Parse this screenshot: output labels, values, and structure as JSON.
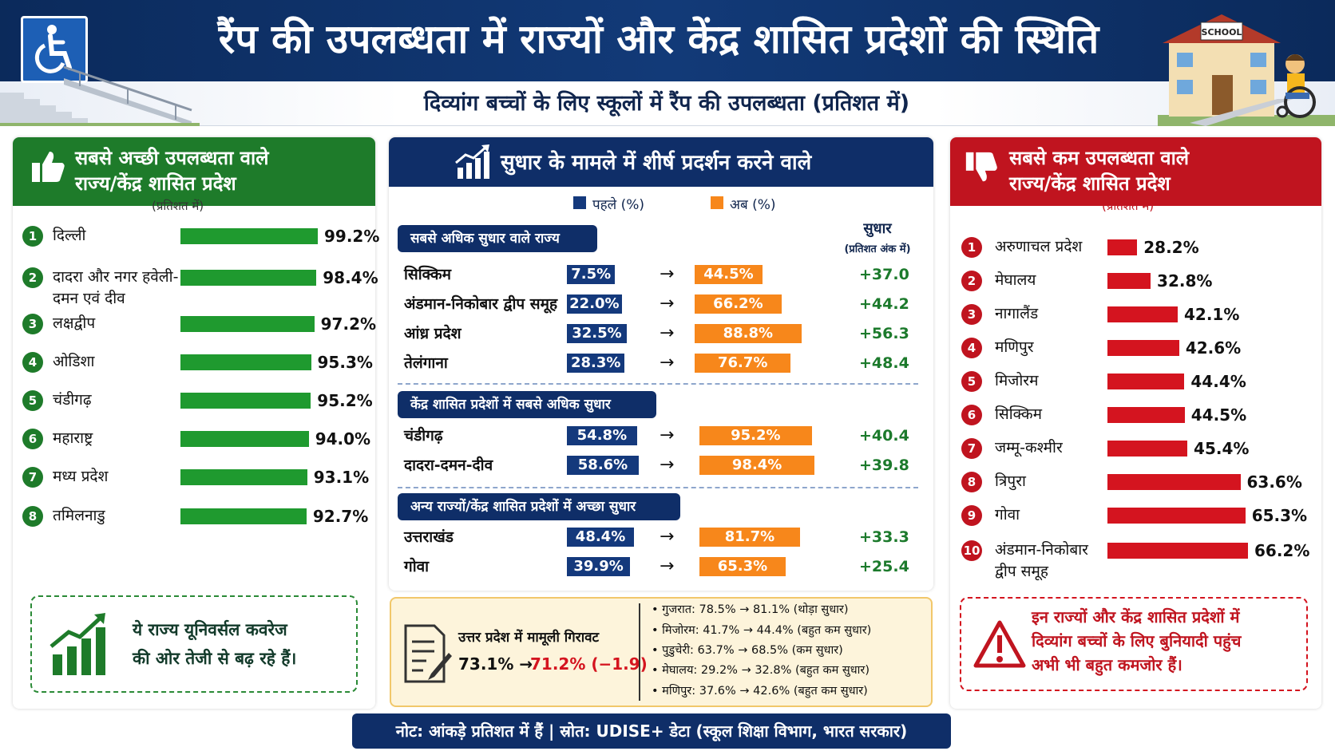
{
  "header": {
    "title": "रैंप की उपलब्धता में राज्यों और केंद्र शासित प्रदेशों की स्थिति",
    "subtitle": "दिव्यांग बच्चों के लिए स्कूलों में रैंप की उपलब्धता (प्रतिशत में)",
    "school_sign": "SCHOOL"
  },
  "colors": {
    "green": "#1e7b2a",
    "blue": "#0f2e68",
    "red": "#c0141f",
    "orange": "#f7871b"
  },
  "best": {
    "title_line1": "सबसे अच्छी उपलब्धता वाले",
    "title_line2": "राज्य/केंद्र शासित प्रदेश",
    "pct_note": "(प्रतिशत में)",
    "callout_line1": "ये राज्य यूनिवर्सल कवरेज",
    "callout_line2": "की ओर तेजी से बढ़ रहे हैं।"
  },
  "worst": {
    "title_line1": "सबसे कम उपलब्धता वाले",
    "title_line2": "राज्य/केंद्र शासित प्रदेश",
    "pct_note": "(प्रतिशत में)",
    "callout_line1": "इन राज्यों और केंद्र शासित प्रदेशों में",
    "callout_line2": "दिव्यांग बच्चों के लिए बुनियादी पहुंच",
    "callout_line3": "अभी भी बहुत कमजोर हैं।"
  },
  "improve": {
    "title": "सुधार के मामले में शीर्ष प्रदर्शन करने वाले",
    "legend_before": "पहले (%)",
    "legend_after": "अब (%)",
    "imp_header": "सुधार",
    "imp_sub": "(प्रतिशत अंक में)",
    "sec1": "सबसे अधिक सुधार वाले राज्य",
    "sec2": "केंद्र शासित प्रदेशों में सबसे अधिक सुधार",
    "sec3": "अन्य राज्यों/केंद्र शासित प्रदेशों में अच्छा सुधार",
    "arrow": "→"
  },
  "up_box": {
    "title": "उत्तर प्रदेश में मामूली गिरावट",
    "before": "73.1% →",
    "after": "71.2% (−1.9)",
    "bullets": [
      "•  गुजरात:  78.5% → 81.1% (थोड़ा सुधार)",
      "•  मिजोरम:  41.7% → 44.4% (बहुत कम सुधार)",
      "•  पुडुचेरी:  63.7% → 68.5% (कम सुधार)",
      "•  मेघालय:  29.2% → 32.8% (बहुत कम सुधार)",
      "•  मणिपुर:  37.6% → 42.6% (बहुत कम सुधार)"
    ]
  },
  "footer": "नोट: आंकड़े प्रतिशत में हैं | स्रोत: UDISE+ डेटा (स्कूल शिक्षा विभाग, भारत सरकार)",
  "chart_data": [
    {
      "type": "bar",
      "title": "सबसे अच्छी उपलब्धता वाले राज्य/केंद्र शासित प्रदेश",
      "ranks": [
        "1",
        "2",
        "3",
        "4",
        "5",
        "6",
        "7",
        "8"
      ],
      "categories": [
        "दिल्ली",
        "दादरा और नगर हवेली-दमन एवं दीव",
        "लक्षद्वीप",
        "ओडिशा",
        "चंडीगढ़",
        "महाराष्ट्र",
        "मध्य प्रदेश",
        "तमिलनाडु"
      ],
      "values": [
        99.2,
        98.4,
        97.2,
        95.3,
        95.2,
        94.0,
        93.1,
        92.7
      ],
      "labels": [
        "99.2%",
        "98.4%",
        "97.2%",
        "95.3%",
        "95.2%",
        "94.0%",
        "93.1%",
        "92.7%"
      ],
      "unit": "%"
    },
    {
      "type": "bar",
      "title": "सबसे कम उपलब्धता वाले राज्य/केंद्र शासित प्रदेश",
      "ranks": [
        "1",
        "2",
        "3",
        "4",
        "5",
        "6",
        "7",
        "8",
        "9",
        "10"
      ],
      "categories": [
        "अरुणाचल प्रदेश",
        "मेघालय",
        "नागालैंड",
        "मणिपुर",
        "मिजोरम",
        "सिक्किम",
        "जम्मू-कश्मीर",
        "त्रिपुरा",
        "गोवा",
        "अंडमान-निकोबार द्वीप समूह"
      ],
      "values": [
        28.2,
        32.8,
        42.1,
        42.6,
        44.4,
        44.5,
        45.4,
        63.6,
        65.3,
        66.2
      ],
      "labels": [
        "28.2%",
        "32.8%",
        "42.1%",
        "42.6%",
        "44.4%",
        "44.5%",
        "45.4%",
        "63.6%",
        "65.3%",
        "66.2%"
      ],
      "unit": "%"
    },
    {
      "type": "bar",
      "title": "सुधार के मामले में शीर्ष प्रदर्शन करने वाले",
      "series": [
        {
          "name": "पहले (%)"
        },
        {
          "name": "अब (%)"
        }
      ],
      "rows": [
        {
          "name": "सिक्किम",
          "before": 7.5,
          "after": 44.5,
          "before_label": "7.5%",
          "after_label": "44.5%",
          "improvement": "+37.0",
          "section": 1
        },
        {
          "name": "अंडमान-निकोबार द्वीप समूह",
          "before": 22.0,
          "after": 66.2,
          "before_label": "22.0%",
          "after_label": "66.2%",
          "improvement": "+44.2",
          "section": 1
        },
        {
          "name": "आंध्र प्रदेश",
          "before": 32.5,
          "after": 88.8,
          "before_label": "32.5%",
          "after_label": "88.8%",
          "improvement": "+56.3",
          "section": 1
        },
        {
          "name": "तेलंगाना",
          "before": 28.3,
          "after": 76.7,
          "before_label": "28.3%",
          "after_label": "76.7%",
          "improvement": "+48.4",
          "section": 1
        },
        {
          "name": "चंडीगढ़",
          "before": 54.8,
          "after": 95.2,
          "before_label": "54.8%",
          "after_label": "95.2%",
          "improvement": "+40.4",
          "section": 2
        },
        {
          "name": "दादरा-दमन-दीव",
          "before": 58.6,
          "after": 98.4,
          "before_label": "58.6%",
          "after_label": "98.4%",
          "improvement": "+39.8",
          "section": 2
        },
        {
          "name": "उत्तराखंड",
          "before": 48.4,
          "after": 81.7,
          "before_label": "48.4%",
          "after_label": "81.7%",
          "improvement": "+33.3",
          "section": 3
        },
        {
          "name": "गोवा",
          "before": 39.9,
          "after": 65.3,
          "before_label": "39.9%",
          "after_label": "65.3%",
          "improvement": "+25.4",
          "section": 3
        }
      ]
    }
  ]
}
